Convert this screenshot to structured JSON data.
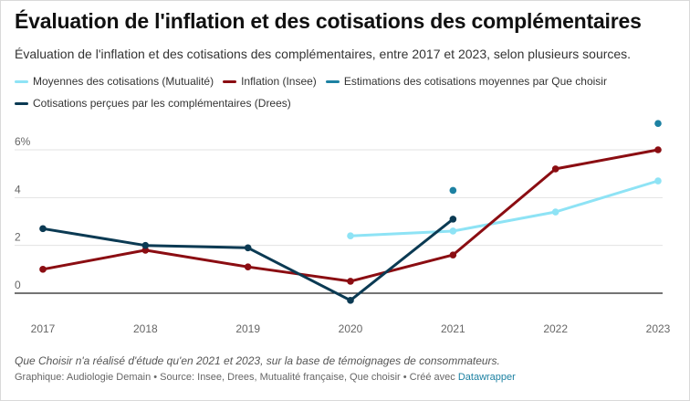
{
  "header": {
    "title": "Évaluation de l'inflation et des cotisations des complémentaires",
    "subtitle": "Évaluation de l'inflation et des cotisations des complémentaires, entre 2017 et 2023, selon plusieurs sources."
  },
  "footer": {
    "note": "Que Choisir n'a réalisé d'étude qu'en 2021 et 2023, sur la base de témoignages de consommateurs.",
    "source_prefix": "Graphique: Audiologie Demain • Source: Insee, Drees, Mutualité française, Que choisir • Créé avec",
    "source_link": "Datawrapper"
  },
  "chart_data": {
    "type": "line",
    "title": "Évaluation de l'inflation et des cotisations des complémentaires",
    "x": [
      2017,
      2018,
      2019,
      2020,
      2021,
      2022,
      2023
    ],
    "x_tick_labels": [
      "2017",
      "2018",
      "2019",
      "2020",
      "2021",
      "2022",
      "2023"
    ],
    "y_ticks": [
      0,
      2,
      4,
      6
    ],
    "y_tick_labels": [
      "0",
      "2",
      "4",
      "6%"
    ],
    "ylim": [
      -0.6,
      6.4
    ],
    "grid": true,
    "legend_position": "top",
    "series": [
      {
        "name": "Moyennes des cotisations (Mutualité)",
        "color": "#8ee3f5",
        "style": "line",
        "points": [
          [
            2020,
            2.4
          ],
          [
            2021,
            2.6
          ],
          [
            2022,
            3.4
          ],
          [
            2023,
            4.7
          ]
        ]
      },
      {
        "name": "Inflation (Insee)",
        "color": "#8b0d12",
        "style": "line",
        "points": [
          [
            2017,
            1.0
          ],
          [
            2018,
            1.8
          ],
          [
            2019,
            1.1
          ],
          [
            2020,
            0.5
          ],
          [
            2021,
            1.6
          ],
          [
            2022,
            5.2
          ],
          [
            2023,
            6.0
          ]
        ]
      },
      {
        "name": "Estimations des cotisations moyennes par Que choisir",
        "color": "#1d81a2",
        "style": "dots",
        "points": [
          [
            2021,
            4.3
          ],
          [
            2023,
            7.1
          ]
        ]
      },
      {
        "name": "Cotisations perçues par les complémentaires (Drees)",
        "color": "#0b3a53",
        "style": "line",
        "points": [
          [
            2017,
            2.7
          ],
          [
            2018,
            2.0
          ],
          [
            2019,
            1.9
          ],
          [
            2020,
            -0.3
          ],
          [
            2021,
            3.1
          ]
        ]
      }
    ]
  }
}
